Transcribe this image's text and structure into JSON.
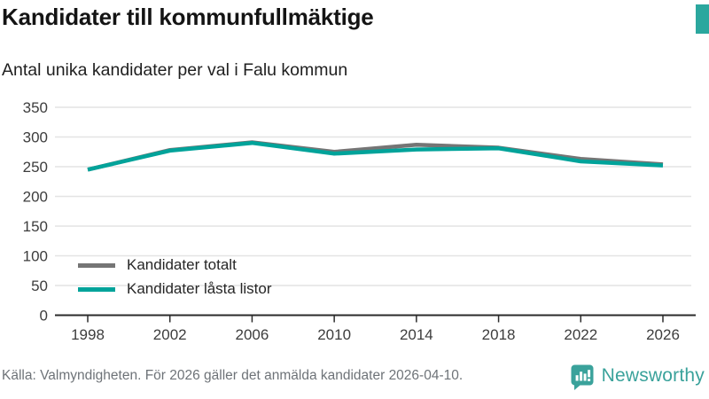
{
  "header": {
    "title": "Kandidater till kommunfullmäktige",
    "subtitle": "Antal unika kandidater per val i Falu kommun"
  },
  "chart_data": {
    "type": "line",
    "title": "Kandidater till kommunfullmäktige",
    "subtitle": "Antal unika kandidater per val i Falu kommun",
    "categories": [
      "1998",
      "2002",
      "2006",
      "2010",
      "2014",
      "2018",
      "2022",
      "2026"
    ],
    "series": [
      {
        "name": "Kandidater totalt",
        "color": "#757575",
        "values": [
          245,
          278,
          291,
          275,
          287,
          282,
          263,
          254
        ]
      },
      {
        "name": "Kandidater låsta listor",
        "color": "#00a39a",
        "values": [
          245,
          277,
          290,
          272,
          279,
          281,
          259,
          252
        ]
      }
    ],
    "xlabel": "",
    "ylabel": "",
    "ylim": [
      0,
      350
    ],
    "yticks": [
      0,
      50,
      100,
      150,
      200,
      250,
      300,
      350
    ],
    "grid": true,
    "legend_position": "inside-bottom-left"
  },
  "footer": {
    "source": "Källa: Valmyndigheten. För 2026 gäller det anmälda kandidater 2026-04-10.",
    "brand": "Newsworthy"
  },
  "colors": {
    "accent_teal": "#00a39a",
    "series_gray": "#757575",
    "logo_teal": "#3aa29b",
    "gridline": "#e4e4e4",
    "axis": "#2b2b2b",
    "source_text": "#6e7378"
  }
}
